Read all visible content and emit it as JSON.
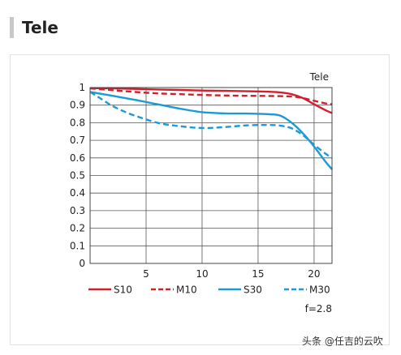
{
  "heading": {
    "title": "Tele"
  },
  "chart_data": {
    "type": "line",
    "title": "Tele",
    "xlabel": "",
    "ylabel": "",
    "xlim": [
      0,
      21.6
    ],
    "ylim": [
      0,
      1
    ],
    "xticks": [
      5,
      10,
      15,
      20
    ],
    "yticks": [
      0,
      0.1,
      0.2,
      0.3,
      0.4,
      0.5,
      0.6,
      0.7,
      0.8,
      0.9,
      1
    ],
    "ytick_labels": [
      "0",
      "0.1",
      "0.2",
      "0.3",
      "0.4",
      "0.5",
      "0.6",
      "0.7",
      "0.8",
      "0.9",
      "1"
    ],
    "grid": true,
    "legend": "bottom",
    "annotation": "f=2.8",
    "series": [
      {
        "name": "S10",
        "color": "#d0202e",
        "dash": false,
        "x": [
          0,
          2,
          4,
          6,
          8,
          10,
          12,
          14,
          16,
          17,
          18,
          19,
          20,
          21,
          21.6
        ],
        "y": [
          0.997,
          0.995,
          0.992,
          0.989,
          0.986,
          0.983,
          0.981,
          0.979,
          0.976,
          0.972,
          0.962,
          0.94,
          0.905,
          0.872,
          0.855
        ]
      },
      {
        "name": "M10",
        "color": "#d0202e",
        "dash": true,
        "x": [
          0,
          2,
          4,
          6,
          8,
          10,
          12,
          14,
          16,
          18,
          19,
          20,
          21,
          21.6
        ],
        "y": [
          0.995,
          0.985,
          0.975,
          0.967,
          0.962,
          0.958,
          0.955,
          0.953,
          0.952,
          0.949,
          0.94,
          0.925,
          0.91,
          0.905
        ]
      },
      {
        "name": "S30",
        "color": "#1a9ad6",
        "dash": false,
        "x": [
          0,
          2,
          4,
          6,
          8,
          10,
          12,
          14,
          16,
          17,
          18,
          19,
          20,
          21,
          21.6
        ],
        "y": [
          0.975,
          0.953,
          0.93,
          0.905,
          0.88,
          0.86,
          0.853,
          0.852,
          0.848,
          0.84,
          0.8,
          0.74,
          0.665,
          0.58,
          0.535
        ]
      },
      {
        "name": "M30",
        "color": "#1a9ad6",
        "dash": true,
        "x": [
          0,
          1,
          2,
          3,
          4,
          6,
          8,
          10,
          12,
          14,
          16,
          17,
          18,
          19,
          20,
          21,
          21.6
        ],
        "y": [
          0.975,
          0.935,
          0.895,
          0.865,
          0.84,
          0.8,
          0.78,
          0.77,
          0.775,
          0.785,
          0.787,
          0.783,
          0.768,
          0.73,
          0.675,
          0.625,
          0.6
        ]
      }
    ]
  },
  "watermark": "头条 @任吉的云吹"
}
